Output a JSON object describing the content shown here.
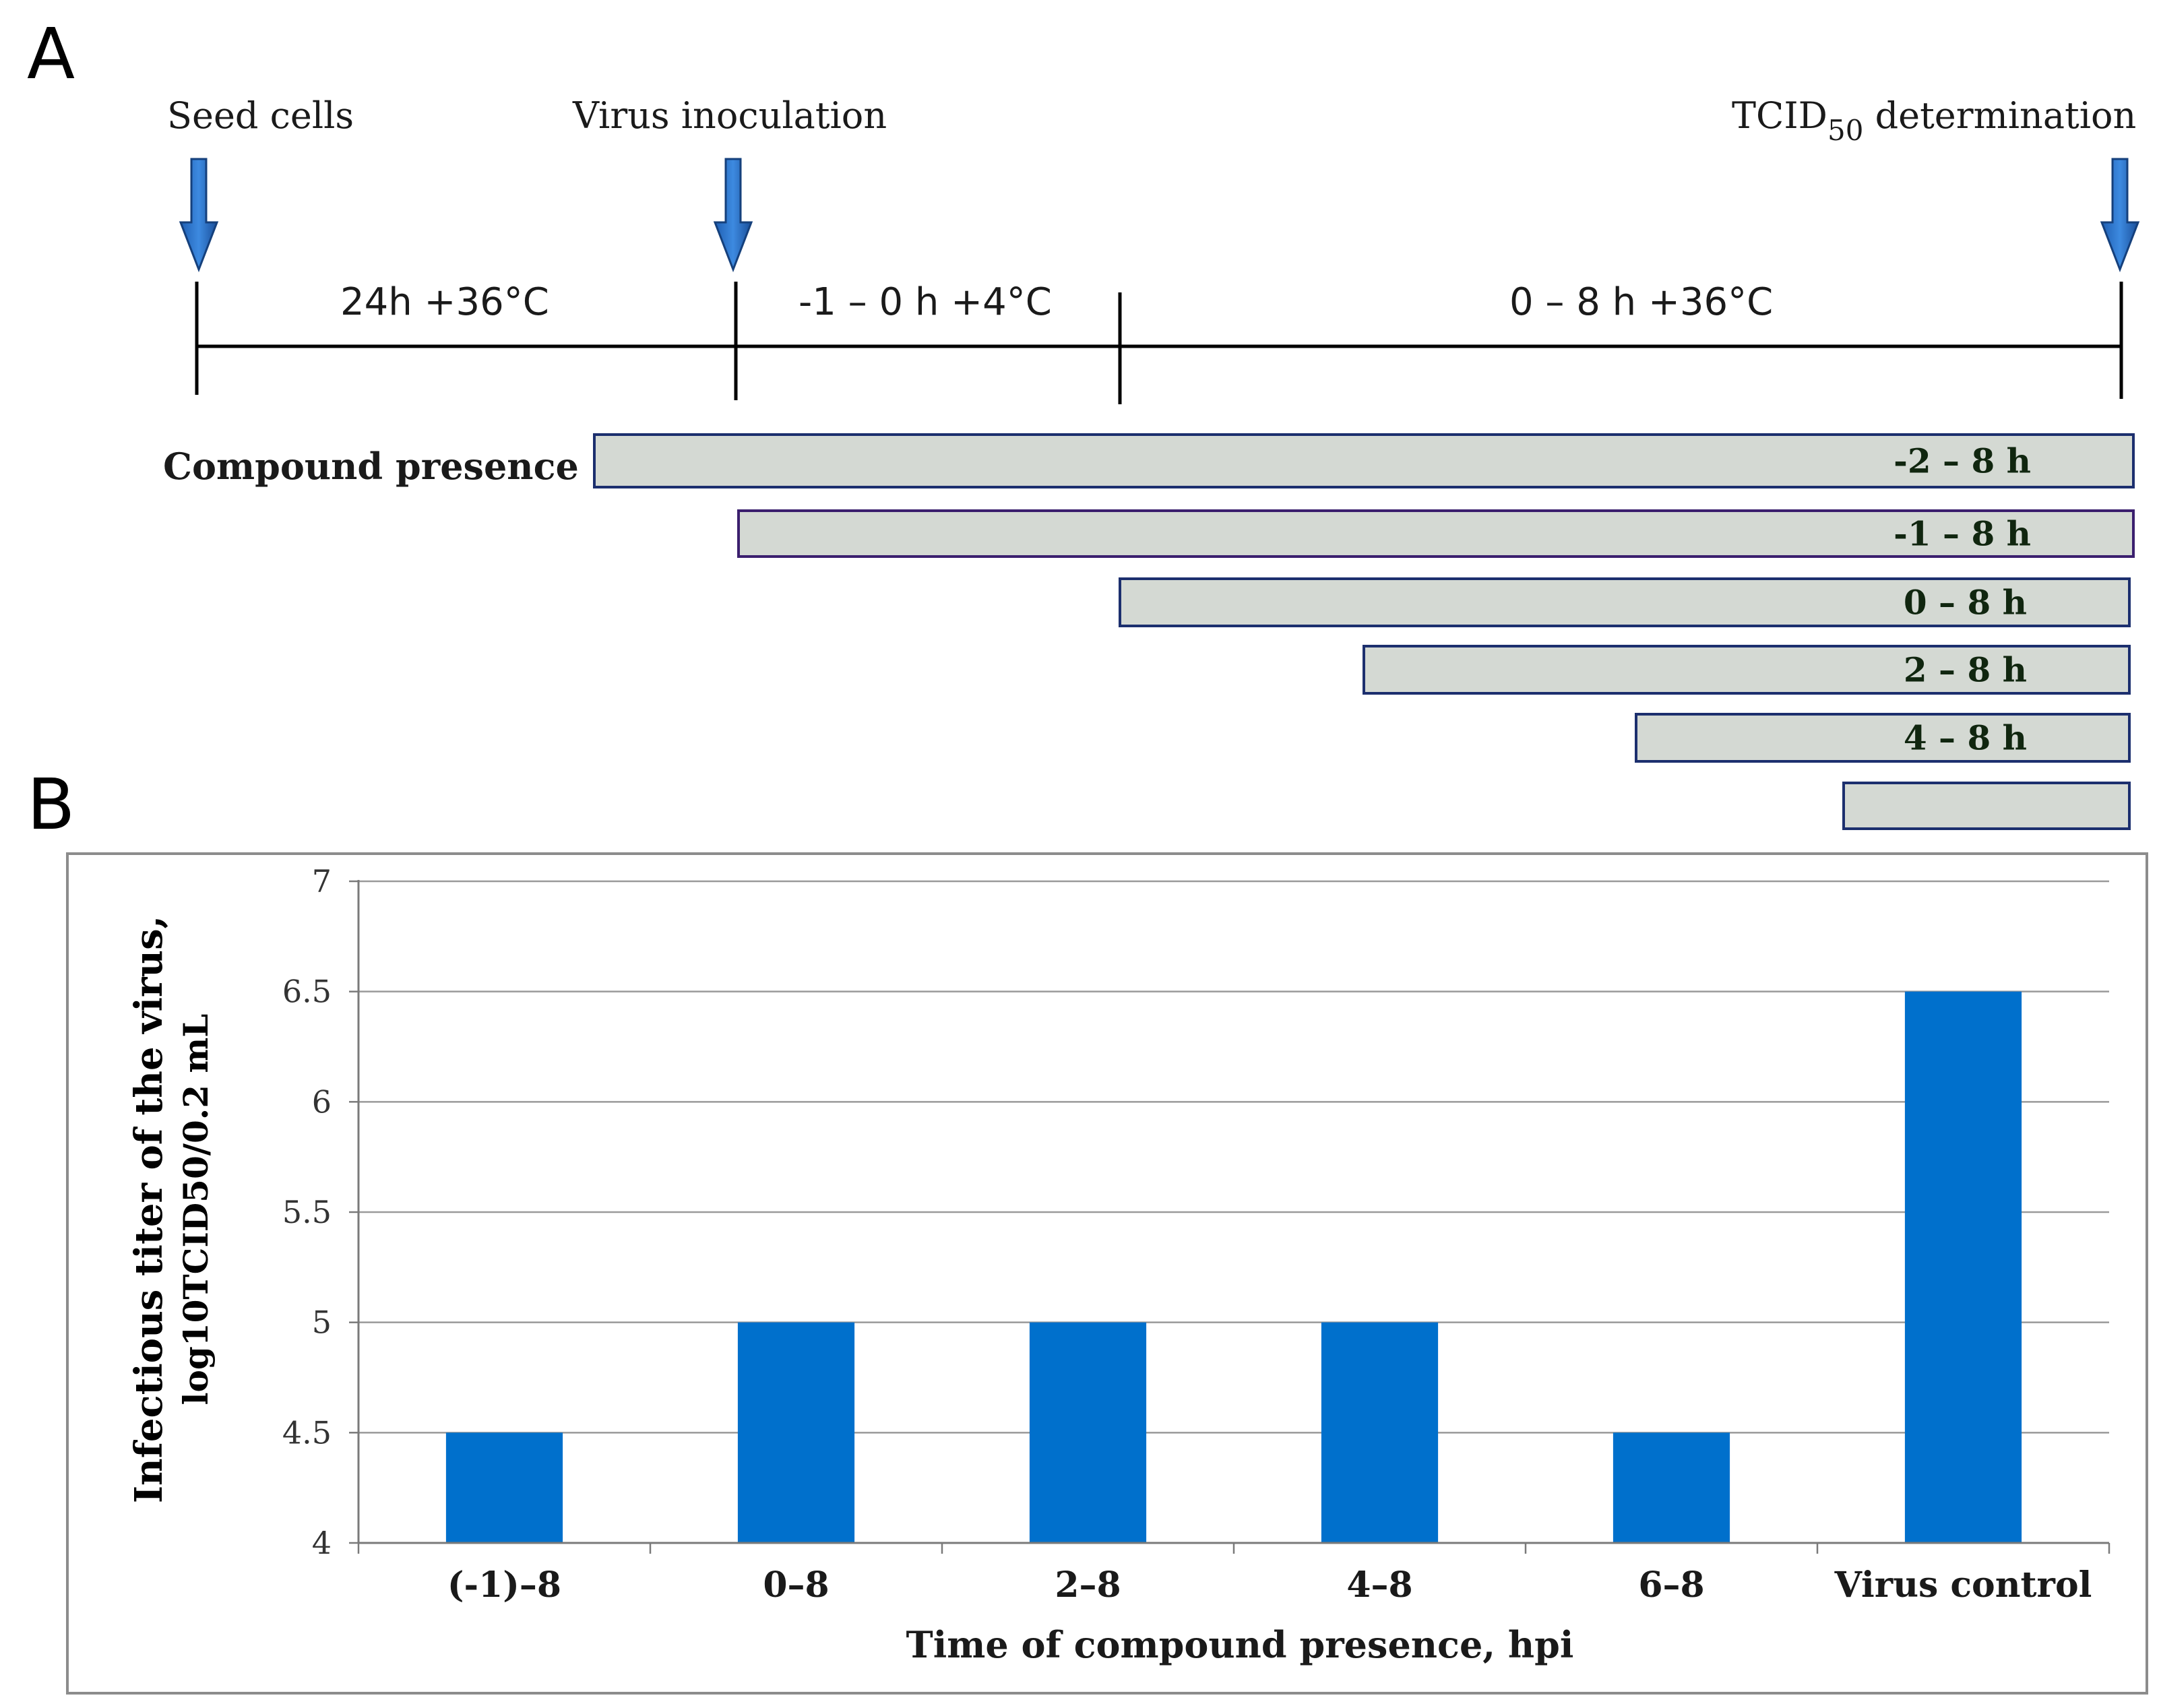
{
  "panels": {
    "a": "A",
    "b": "B"
  },
  "timeline": {
    "events": {
      "seed": "Seed cells",
      "virus": "Virus inoculation",
      "tcid_main": "TCID",
      "tcid_sub": "50",
      "tcid_rest": " determination"
    },
    "phases": [
      "24h +36°C",
      "-1 – 0 h +4°C",
      "0 – 8 h +36°C"
    ],
    "compound_title": "Compound presence",
    "bars": [
      "-2 – 8 h",
      "-1 – 8 h",
      "0 – 8 h",
      "2 – 8 h",
      "4 – 8 h",
      ""
    ]
  },
  "chart_data": {
    "type": "bar",
    "title": "",
    "categories": [
      "(-1)–8",
      "0–8",
      "2–8",
      "4–8",
      "6–8",
      "Virus control"
    ],
    "values": [
      4.5,
      5,
      5,
      5,
      4.5,
      6.5
    ],
    "ylabel_line1": "Infectious titer of the virus,",
    "ylabel_line2": "log10TCID50/0.2 mL",
    "xlabel": "Time of compound presence, hpi",
    "ylim": [
      4,
      7
    ],
    "yticks": [
      "4",
      "4.5",
      "5",
      "5.5",
      "6",
      "6.5",
      "7"
    ],
    "bar_color": "#0070cc",
    "grid": true
  }
}
